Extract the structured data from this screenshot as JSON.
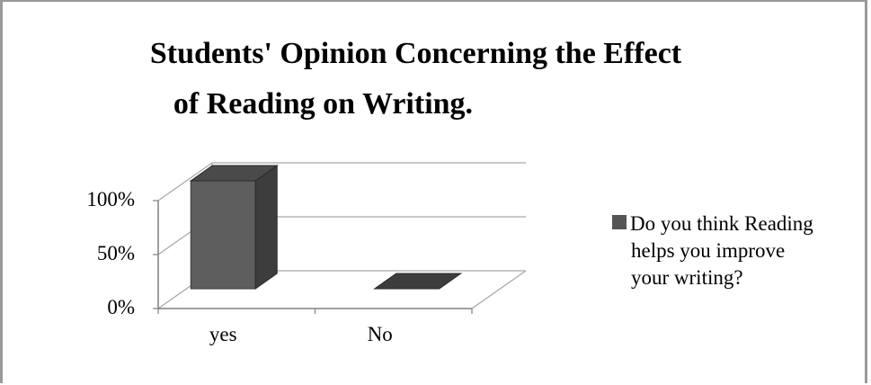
{
  "chart_data": {
    "type": "bar",
    "title_line1": "Students' Opinion Concerning the Effect",
    "title_line2": "of Reading on Writing.",
    "categories": [
      "yes",
      "No"
    ],
    "series": [
      {
        "name": "Do you think Reading helps you improve your writing?",
        "values": [
          100,
          0
        ]
      }
    ],
    "y_ticks": [
      "0%",
      "50%",
      "100%"
    ],
    "ylim": [
      0,
      100
    ],
    "y_unit": "%",
    "grid": true,
    "three_d": true,
    "legend_position": "right",
    "legend_lines": [
      "Do you think Reading",
      "helps you improve",
      "your writing?"
    ],
    "bar_color": "#5a5a5a"
  }
}
